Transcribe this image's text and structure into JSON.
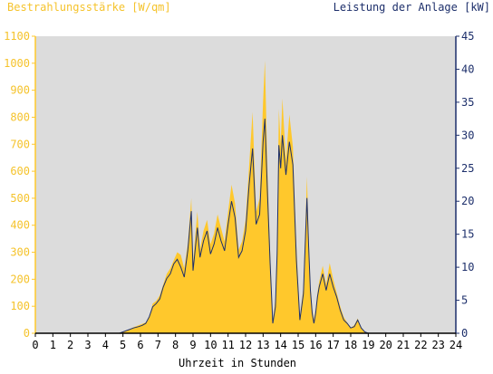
{
  "chart_data": {
    "type": "area",
    "left_axis_title": "Bestrahlungsstärke [W/qm]",
    "right_axis_title": "Leistung der Anlage [kW]",
    "xlabel": "Uhrzeit in Stunden",
    "xlim": [
      0,
      24
    ],
    "x_ticks": [
      "0",
      "1",
      "2",
      "3",
      "4",
      "5",
      "6",
      "7",
      "8",
      "9",
      "10",
      "11",
      "12",
      "13",
      "14",
      "15",
      "16",
      "17",
      "18",
      "19",
      "20",
      "21",
      "22",
      "23",
      "24"
    ],
    "left_ylim": [
      0,
      1100
    ],
    "left_ticks": [
      "0",
      "100",
      "200",
      "300",
      "400",
      "500",
      "600",
      "700",
      "800",
      "900",
      "1000",
      "1100"
    ],
    "right_ylim": [
      0,
      45
    ],
    "right_ticks": [
      "0",
      "5",
      "10",
      "15",
      "20",
      "25",
      "30",
      "35",
      "40",
      "45"
    ],
    "grid": false,
    "plot_background": "#dcdcdc",
    "irradiance_color": "#ffc82c",
    "power_color": "#1d2f6b",
    "series": [
      {
        "axis": "left",
        "x": [
          4.8,
          5.0,
          5.3,
          5.6,
          5.9,
          6.1,
          6.3,
          6.5,
          6.7,
          6.9,
          7.1,
          7.3,
          7.5,
          7.7,
          7.9,
          8.1,
          8.3,
          8.5,
          8.7,
          8.9,
          9.0,
          9.1,
          9.25,
          9.4,
          9.6,
          9.8,
          10.0,
          10.2,
          10.4,
          10.6,
          10.8,
          11.0,
          11.2,
          11.4,
          11.6,
          11.8,
          12.0,
          12.2,
          12.4,
          12.6,
          12.8,
          13.0,
          13.1,
          13.25,
          13.4,
          13.55,
          13.7,
          13.8,
          13.9,
          14.0,
          14.1,
          14.3,
          14.5,
          14.7,
          14.9,
          15.1,
          15.3,
          15.5,
          15.6,
          15.7,
          15.8,
          15.9,
          16.0,
          16.1,
          16.2,
          16.4,
          16.6,
          16.8,
          17.0,
          17.2,
          17.4,
          17.6,
          17.8,
          18.0,
          18.2,
          18.4,
          18.6,
          18.8,
          19.0,
          19.2,
          19.4,
          19.6,
          19.8,
          20.0,
          20.2,
          20.4
        ],
        "values": [
          0,
          5,
          12,
          22,
          30,
          35,
          40,
          60,
          110,
          120,
          140,
          180,
          220,
          240,
          270,
          300,
          290,
          240,
          330,
          500,
          260,
          340,
          450,
          310,
          380,
          420,
          330,
          370,
          440,
          390,
          340,
          450,
          550,
          480,
          310,
          340,
          420,
          620,
          820,
          450,
          500,
          860,
          1010,
          600,
          300,
          40,
          130,
          340,
          830,
          700,
          870,
          640,
          810,
          690,
          320,
          60,
          170,
          580,
          360,
          180,
          90,
          50,
          90,
          150,
          190,
          250,
          180,
          260,
          200,
          150,
          100,
          60,
          40,
          20,
          30,
          55,
          20,
          5,
          0,
          0,
          0,
          0,
          0,
          0,
          0,
          0
        ]
      },
      {
        "axis": "right",
        "x": [
          4.8,
          5.0,
          5.3,
          5.6,
          5.9,
          6.1,
          6.3,
          6.5,
          6.7,
          6.9,
          7.1,
          7.3,
          7.5,
          7.7,
          7.9,
          8.1,
          8.3,
          8.5,
          8.7,
          8.9,
          9.0,
          9.1,
          9.25,
          9.4,
          9.6,
          9.8,
          10.0,
          10.2,
          10.4,
          10.6,
          10.8,
          11.0,
          11.2,
          11.4,
          11.6,
          11.8,
          12.0,
          12.2,
          12.4,
          12.6,
          12.8,
          13.0,
          13.1,
          13.25,
          13.4,
          13.55,
          13.7,
          13.8,
          13.9,
          14.0,
          14.1,
          14.3,
          14.5,
          14.7,
          14.9,
          15.1,
          15.3,
          15.5,
          15.6,
          15.7,
          15.8,
          15.9,
          16.0,
          16.1,
          16.2,
          16.4,
          16.6,
          16.8,
          17.0,
          17.2,
          17.4,
          17.6,
          17.8,
          18.0,
          18.2,
          18.4,
          18.6,
          18.8,
          19.0,
          19.2,
          19.4,
          19.6,
          19.8,
          20.0,
          20.2,
          20.4
        ],
        "values": [
          0,
          0.2,
          0.5,
          0.8,
          1.0,
          1.2,
          1.5,
          2.5,
          4.0,
          4.5,
          5.2,
          7.0,
          8.3,
          9.0,
          10.5,
          11.2,
          10.0,
          8.5,
          12.5,
          18.5,
          9.5,
          12.0,
          16.0,
          11.5,
          14.0,
          15.5,
          12.0,
          13.5,
          16.0,
          14.0,
          12.5,
          16.5,
          20.0,
          17.5,
          11.5,
          12.5,
          15.5,
          22.5,
          28.0,
          16.5,
          18.0,
          29.0,
          32.5,
          21.0,
          10.5,
          1.5,
          4.0,
          12.0,
          28.5,
          25.0,
          30.0,
          24.0,
          29.0,
          25.5,
          11.0,
          2.0,
          6.0,
          20.5,
          13.0,
          6.5,
          3.0,
          1.5,
          3.0,
          5.5,
          7.0,
          9.0,
          6.5,
          9.0,
          7.0,
          5.5,
          3.5,
          2.0,
          1.5,
          0.8,
          1.0,
          2.0,
          0.8,
          0.2,
          0,
          0,
          0,
          0,
          0,
          0,
          0,
          0
        ]
      }
    ]
  }
}
